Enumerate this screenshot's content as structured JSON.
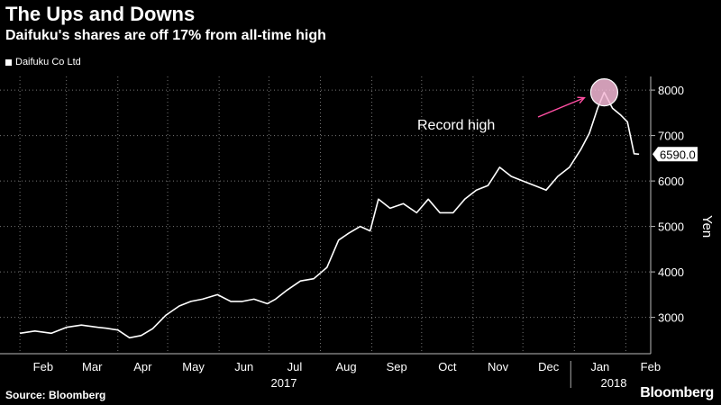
{
  "header": {
    "title": "The Ups and Downs",
    "subtitle": "Daifuku's shares are off 17% from all-time high"
  },
  "footer": {
    "source": "Source: Bloomberg",
    "brand": "Bloomberg"
  },
  "colors": {
    "background": "#000000",
    "line": "#ffffff",
    "highlight": "#ff4fa3"
  },
  "chart_data": {
    "type": "line",
    "series": [
      {
        "name": "Daifuku Co Ltd",
        "x": [
          "2017-02-01",
          "2017-02-10",
          "2017-02-20",
          "2017-03-01",
          "2017-03-10",
          "2017-03-20",
          "2017-03-25",
          "2017-04-01",
          "2017-04-08",
          "2017-04-15",
          "2017-04-22",
          "2017-04-30",
          "2017-05-08",
          "2017-05-15",
          "2017-05-22",
          "2017-05-31",
          "2017-06-08",
          "2017-06-15",
          "2017-06-22",
          "2017-06-30",
          "2017-07-05",
          "2017-07-12",
          "2017-07-20",
          "2017-07-28",
          "2017-08-05",
          "2017-08-12",
          "2017-08-18",
          "2017-08-25",
          "2017-08-31",
          "2017-09-05",
          "2017-09-12",
          "2017-09-20",
          "2017-09-28",
          "2017-10-05",
          "2017-10-12",
          "2017-10-20",
          "2017-10-27",
          "2017-11-03",
          "2017-11-10",
          "2017-11-17",
          "2017-11-24",
          "2017-12-01",
          "2017-12-08",
          "2017-12-15",
          "2017-12-22",
          "2017-12-29",
          "2018-01-05",
          "2018-01-10",
          "2018-01-15",
          "2018-01-19",
          "2018-01-24",
          "2018-01-29",
          "2018-02-02",
          "2018-02-06",
          "2018-02-09"
        ],
        "values": [
          2650,
          2700,
          2650,
          2780,
          2830,
          2780,
          2760,
          2720,
          2550,
          2600,
          2750,
          3050,
          3250,
          3350,
          3400,
          3500,
          3350,
          3350,
          3400,
          3300,
          3400,
          3600,
          3800,
          3850,
          4100,
          4700,
          4850,
          5000,
          4900,
          5600,
          5400,
          5500,
          5300,
          5600,
          5300,
          5300,
          5600,
          5800,
          5900,
          6300,
          6100,
          6000,
          5900,
          5800,
          6100,
          6300,
          6700,
          7050,
          7600,
          7950,
          7600,
          7450,
          7300,
          6600,
          6590
        ]
      }
    ],
    "x_ticks": [
      "Feb",
      "Mar",
      "Apr",
      "May",
      "Jun",
      "Jul",
      "Aug",
      "Sep",
      "Oct",
      "Nov",
      "Dec",
      "Jan",
      "Feb"
    ],
    "x_tick_dates": [
      "2017-02-01",
      "2017-03-01",
      "2017-04-01",
      "2017-05-01",
      "2017-06-01",
      "2017-07-01",
      "2017-08-01",
      "2017-09-01",
      "2017-10-01",
      "2017-11-01",
      "2017-12-01",
      "2018-01-01",
      "2018-02-01"
    ],
    "year_labels": [
      "2017",
      "2018"
    ],
    "y_ticks": [
      3000,
      4000,
      5000,
      6000,
      7000,
      8000
    ],
    "ylabel": "Yen",
    "ylim": [
      2200,
      8200
    ],
    "last_value_label": "6590.0",
    "annotation": {
      "text": "Record high",
      "date": "2018-01-19",
      "value": 7950
    },
    "grid": true,
    "legend_position": "top-left"
  }
}
